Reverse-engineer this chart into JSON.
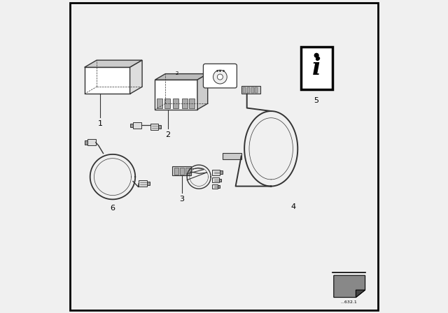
{
  "background_color": "#f0f0f0",
  "border_color": "#000000",
  "line_color": "#333333",
  "fig_width": 6.4,
  "fig_height": 4.48,
  "dpi": 100,
  "watermark_text": "...632.1"
}
